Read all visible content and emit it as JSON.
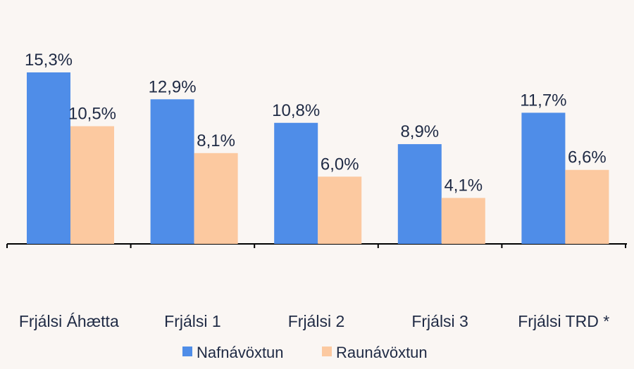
{
  "chart_data": {
    "type": "bar",
    "categories": [
      "Frjálsi Áhætta",
      "Frjálsi 1",
      "Frjálsi 2",
      "Frjálsi 3",
      "Frjálsi TRD *"
    ],
    "series": [
      {
        "name": "Nafnávöxtun",
        "values": [
          15.3,
          12.9,
          10.8,
          8.9,
          11.7
        ],
        "labels": [
          "15,3%",
          "12,9%",
          "10,8%",
          "8,9%",
          "11,7%"
        ],
        "color": "#4f8de8"
      },
      {
        "name": "Raunávöxtun",
        "values": [
          10.5,
          8.1,
          6.0,
          4.1,
          6.6
        ],
        "labels": [
          "10,5%",
          "8,1%",
          "6,0%",
          "4,1%",
          "6,6%"
        ],
        "color": "#fcc9a0"
      }
    ],
    "ylim": [
      0,
      15.3
    ],
    "grid": false,
    "legend_position": "bottom",
    "background": "#faf6f3",
    "axis_color": "#000000"
  }
}
